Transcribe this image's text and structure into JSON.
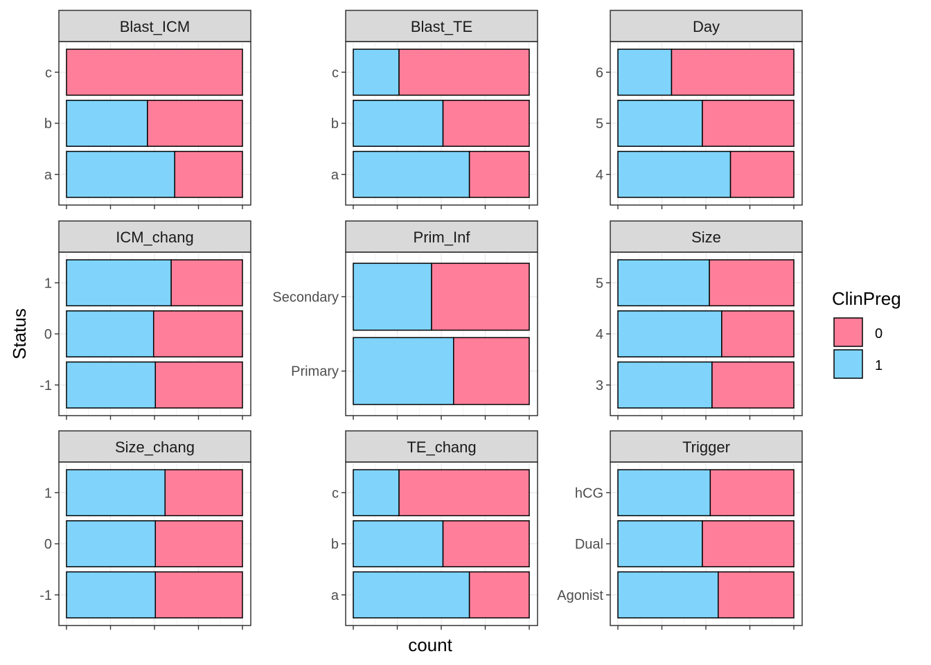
{
  "chart_data": {
    "type": "bar",
    "orientation": "horizontal",
    "position": "stacked-fill",
    "xlabel": "count",
    "ylabel": "Status",
    "xlim": [
      0,
      1
    ],
    "grid": true,
    "legend": {
      "title": "ClinPreg",
      "placement": "right",
      "entries": [
        {
          "label": "0",
          "color": "#ff7f9a"
        },
        {
          "label": "1",
          "color": "#80d4fc"
        }
      ]
    },
    "colors": {
      "0": "#ff7f9a",
      "1": "#80d4fc"
    },
    "panels": [
      {
        "title": "Blast_ICM",
        "categories": [
          "a",
          "b",
          "c"
        ],
        "series": [
          {
            "name": "1",
            "values": [
              0.615,
              0.46,
              0.0
            ]
          },
          {
            "name": "0",
            "values": [
              0.385,
              0.54,
              1.0
            ]
          }
        ]
      },
      {
        "title": "Blast_TE",
        "categories": [
          "a",
          "b",
          "c"
        ],
        "series": [
          {
            "name": "1",
            "values": [
              0.66,
              0.51,
              0.26
            ]
          },
          {
            "name": "0",
            "values": [
              0.34,
              0.49,
              0.74
            ]
          }
        ]
      },
      {
        "title": "Day",
        "categories": [
          "4",
          "5",
          "6"
        ],
        "series": [
          {
            "name": "1",
            "values": [
              0.64,
              0.48,
              0.305
            ]
          },
          {
            "name": "0",
            "values": [
              0.36,
              0.52,
              0.695
            ]
          }
        ]
      },
      {
        "title": "ICM_chang",
        "categories": [
          "-1",
          "0",
          "1"
        ],
        "series": [
          {
            "name": "1",
            "values": [
              0.505,
              0.495,
              0.595
            ]
          },
          {
            "name": "0",
            "values": [
              0.495,
              0.505,
              0.405
            ]
          }
        ]
      },
      {
        "title": "Prim_Inf",
        "categories": [
          "Primary",
          "Secondary"
        ],
        "series": [
          {
            "name": "1",
            "values": [
              0.57,
              0.445
            ]
          },
          {
            "name": "0",
            "values": [
              0.43,
              0.555
            ]
          }
        ]
      },
      {
        "title": "Size",
        "categories": [
          "3",
          "4",
          "5"
        ],
        "series": [
          {
            "name": "1",
            "values": [
              0.535,
              0.59,
              0.52
            ]
          },
          {
            "name": "0",
            "values": [
              0.465,
              0.41,
              0.48
            ]
          }
        ]
      },
      {
        "title": "Size_chang",
        "categories": [
          "-1",
          "0",
          "1"
        ],
        "series": [
          {
            "name": "1",
            "values": [
              0.505,
              0.505,
              0.56
            ]
          },
          {
            "name": "0",
            "values": [
              0.495,
              0.495,
              0.44
            ]
          }
        ]
      },
      {
        "title": "TE_chang",
        "categories": [
          "a",
          "b",
          "c"
        ],
        "series": [
          {
            "name": "1",
            "values": [
              0.66,
              0.51,
              0.26
            ]
          },
          {
            "name": "0",
            "values": [
              0.34,
              0.49,
              0.74
            ]
          }
        ]
      },
      {
        "title": "Trigger",
        "categories": [
          "Agonist",
          "Dual",
          "hCG"
        ],
        "series": [
          {
            "name": "1",
            "values": [
              0.57,
              0.48,
              0.525
            ]
          },
          {
            "name": "0",
            "values": [
              0.43,
              0.52,
              0.475
            ]
          }
        ]
      }
    ]
  }
}
